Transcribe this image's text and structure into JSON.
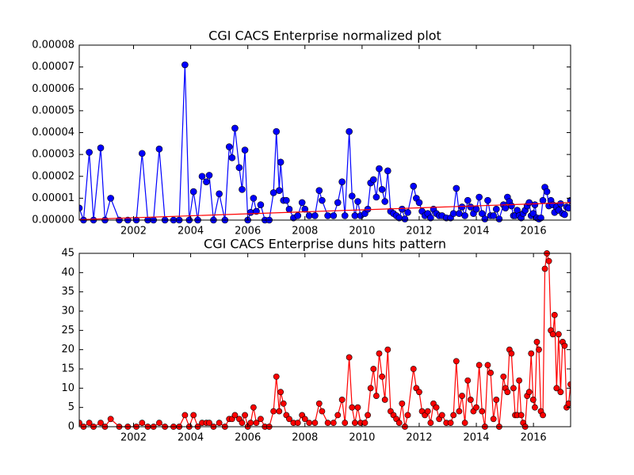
{
  "chart_data": [
    {
      "type": "line",
      "title": "CGI CACS Enterprise normalized plot",
      "xlim": [
        2000.1,
        2017.3
      ],
      "xticks": [
        2002,
        2004,
        2006,
        2008,
        2010,
        2012,
        2014,
        2016
      ],
      "ylim": [
        0,
        8e-05
      ],
      "yticks": [
        {
          "value": 0,
          "label": "0.00000"
        },
        {
          "value": 1e-05,
          "label": "0.00001"
        },
        {
          "value": 2e-05,
          "label": "0.00002"
        },
        {
          "value": 3e-05,
          "label": "0.00003"
        },
        {
          "value": 4e-05,
          "label": "0.00004"
        },
        {
          "value": 5e-05,
          "label": "0.00005"
        },
        {
          "value": 6e-05,
          "label": "0.00006"
        },
        {
          "value": 7e-05,
          "label": "0.00007"
        },
        {
          "value": 8e-05,
          "label": "0.00008"
        }
      ],
      "x": [
        2000.1,
        2000.25,
        2000.45,
        2000.6,
        2000.85,
        2001.0,
        2001.2,
        2001.5,
        2001.8,
        2002.1,
        2002.3,
        2002.5,
        2002.7,
        2002.9,
        2003.1,
        2003.4,
        2003.6,
        2003.8,
        2003.95,
        2004.1,
        2004.25,
        2004.4,
        2004.55,
        2004.65,
        2004.8,
        2005.0,
        2005.2,
        2005.35,
        2005.45,
        2005.55,
        2005.7,
        2005.8,
        2005.9,
        2006.0,
        2006.1,
        2006.2,
        2006.3,
        2006.45,
        2006.6,
        2006.75,
        2006.9,
        2007.0,
        2007.1,
        2007.15,
        2007.25,
        2007.35,
        2007.45,
        2007.6,
        2007.75,
        2007.9,
        2008.0,
        2008.15,
        2008.35,
        2008.5,
        2008.6,
        2008.8,
        2009.0,
        2009.15,
        2009.3,
        2009.4,
        2009.55,
        2009.65,
        2009.75,
        2009.85,
        2009.95,
        2010.1,
        2010.2,
        2010.3,
        2010.4,
        2010.5,
        2010.6,
        2010.7,
        2010.8,
        2010.9,
        2011.0,
        2011.1,
        2011.2,
        2011.3,
        2011.4,
        2011.5,
        2011.6,
        2011.8,
        2011.9,
        2012.0,
        2012.1,
        2012.2,
        2012.3,
        2012.4,
        2012.5,
        2012.6,
        2012.7,
        2012.8,
        2012.95,
        2013.1,
        2013.2,
        2013.3,
        2013.4,
        2013.5,
        2013.6,
        2013.7,
        2013.8,
        2013.9,
        2014.0,
        2014.1,
        2014.2,
        2014.3,
        2014.4,
        2014.5,
        2014.6,
        2014.7,
        2014.8,
        2014.95,
        2015.02,
        2015.09,
        2015.16,
        2015.23,
        2015.3,
        2015.36,
        2015.43,
        2015.5,
        2015.57,
        2015.64,
        2015.71,
        2015.78,
        2015.85,
        2015.92,
        2015.99,
        2016.05,
        2016.12,
        2016.19,
        2016.26,
        2016.33,
        2016.4,
        2016.47,
        2016.54,
        2016.61,
        2016.68,
        2016.74,
        2016.81,
        2016.88,
        2016.95,
        2017.02,
        2017.09,
        2017.16,
        2017.23,
        2017.3
      ],
      "series": [
        {
          "color": "#0000ff",
          "marker": true,
          "values": [
            5.5e-06,
            0,
            3.1e-05,
            0,
            3.3e-05,
            0,
            1e-05,
            0,
            0,
            0,
            3.05e-05,
            0,
            0,
            3.25e-05,
            0,
            0,
            0,
            7.1e-05,
            0,
            1.3e-05,
            0,
            2e-05,
            1.75e-05,
            2.05e-05,
            0,
            1.2e-05,
            0,
            3.35e-05,
            2.85e-05,
            4.2e-05,
            2.4e-05,
            1.4e-05,
            3.2e-05,
            0,
            3.5e-06,
            1e-05,
            4e-06,
            7e-06,
            0,
            0,
            1.25e-05,
            4.05e-05,
            1.35e-05,
            2.65e-05,
            9e-06,
            9e-06,
            5e-06,
            1e-06,
            2e-06,
            8e-06,
            5e-06,
            2e-06,
            2e-06,
            1.35e-05,
            9e-06,
            2e-06,
            2e-06,
            8e-06,
            1.75e-05,
            2e-06,
            4.05e-05,
            1.1e-05,
            2e-06,
            8.5e-06,
            2e-06,
            3e-06,
            5e-06,
            1.7e-05,
            1.85e-05,
            1.05e-05,
            2.35e-05,
            1.4e-05,
            8.5e-06,
            2.25e-05,
            4e-06,
            3e-06,
            2e-06,
            1e-06,
            5e-06,
            5e-07,
            3.5e-06,
            1.55e-05,
            1e-05,
            8e-06,
            4e-06,
            2e-06,
            3e-06,
            1e-06,
            5e-06,
            3e-06,
            2e-06,
            2e-06,
            1e-06,
            1e-06,
            3e-06,
            1.45e-05,
            3e-06,
            6e-06,
            2e-06,
            9e-06,
            6e-06,
            3e-06,
            5e-06,
            1.05e-05,
            3e-06,
            5e-07,
            9e-06,
            2e-06,
            2e-06,
            5e-06,
            5e-07,
            7e-06,
            5.5e-06,
            1.05e-05,
            8.5e-06,
            6.5e-06,
            2e-06,
            2e-06,
            4.5e-06,
            2e-06,
            1e-06,
            3e-06,
            4.5e-06,
            6.5e-06,
            8e-06,
            2e-06,
            3e-06,
            7e-06,
            1e-06,
            5e-07,
            1e-06,
            9e-06,
            1.5e-05,
            1.3e-05,
            6.5e-06,
            9e-06,
            7e-06,
            3.5e-06,
            6e-06,
            4.5e-06,
            7.5e-06,
            3e-06,
            2.5e-06,
            6e-06,
            5.5e-06,
            9e-06
          ]
        },
        {
          "color": "#ff0000",
          "marker": false,
          "x": [
            2000.1,
            2017.3
          ],
          "values": [
            2e-07,
            8e-06
          ]
        }
      ]
    },
    {
      "type": "line",
      "title": "CGI CACS Enterprise duns hits pattern",
      "xlim": [
        2000.1,
        2017.3
      ],
      "xticks": [
        2002,
        2004,
        2006,
        2008,
        2010,
        2012,
        2014,
        2016
      ],
      "ylim": [
        0,
        45
      ],
      "yticks": [
        0,
        5,
        10,
        15,
        20,
        25,
        30,
        35,
        40,
        45
      ],
      "x": [
        2000.1,
        2000.25,
        2000.45,
        2000.6,
        2000.85,
        2001.0,
        2001.2,
        2001.5,
        2001.8,
        2002.1,
        2002.3,
        2002.5,
        2002.7,
        2002.9,
        2003.1,
        2003.4,
        2003.6,
        2003.8,
        2003.95,
        2004.1,
        2004.25,
        2004.4,
        2004.55,
        2004.65,
        2004.8,
        2005.0,
        2005.2,
        2005.35,
        2005.45,
        2005.55,
        2005.7,
        2005.8,
        2005.9,
        2006.0,
        2006.1,
        2006.2,
        2006.3,
        2006.45,
        2006.6,
        2006.75,
        2006.9,
        2007.0,
        2007.1,
        2007.15,
        2007.25,
        2007.35,
        2007.45,
        2007.6,
        2007.75,
        2007.9,
        2008.0,
        2008.15,
        2008.35,
        2008.5,
        2008.6,
        2008.8,
        2009.0,
        2009.15,
        2009.3,
        2009.4,
        2009.55,
        2009.65,
        2009.75,
        2009.85,
        2009.95,
        2010.1,
        2010.2,
        2010.3,
        2010.4,
        2010.5,
        2010.6,
        2010.7,
        2010.8,
        2010.9,
        2011.0,
        2011.1,
        2011.2,
        2011.3,
        2011.4,
        2011.5,
        2011.6,
        2011.8,
        2011.9,
        2012.0,
        2012.1,
        2012.2,
        2012.3,
        2012.4,
        2012.5,
        2012.6,
        2012.7,
        2012.8,
        2012.95,
        2013.1,
        2013.2,
        2013.3,
        2013.4,
        2013.5,
        2013.6,
        2013.7,
        2013.8,
        2013.9,
        2014.0,
        2014.1,
        2014.2,
        2014.3,
        2014.4,
        2014.5,
        2014.6,
        2014.7,
        2014.8,
        2014.95,
        2015.02,
        2015.09,
        2015.16,
        2015.23,
        2015.3,
        2015.36,
        2015.43,
        2015.5,
        2015.57,
        2015.64,
        2015.71,
        2015.78,
        2015.85,
        2015.92,
        2015.99,
        2016.05,
        2016.12,
        2016.19,
        2016.26,
        2016.33,
        2016.4,
        2016.47,
        2016.54,
        2016.61,
        2016.68,
        2016.74,
        2016.81,
        2016.88,
        2016.95,
        2017.02,
        2017.09,
        2017.16,
        2017.23,
        2017.3
      ],
      "series": [
        {
          "color": "#ff0000",
          "marker": true,
          "values": [
            1,
            0,
            1,
            0,
            1,
            0,
            2,
            0,
            0,
            0,
            1,
            0,
            0,
            1,
            0,
            0,
            0,
            3,
            0,
            3,
            0,
            1,
            1,
            1,
            0,
            1,
            0,
            2,
            2,
            3,
            2,
            1,
            3,
            0,
            1,
            5,
            1,
            2,
            0,
            0,
            4,
            13,
            4,
            9,
            6,
            3,
            2,
            1,
            1,
            3,
            2,
            1,
            1,
            6,
            4,
            1,
            1,
            3,
            7,
            1,
            18,
            5,
            1,
            5,
            1,
            1,
            3,
            10,
            15,
            8,
            19,
            13,
            7,
            20,
            4,
            3,
            2,
            1,
            6,
            0,
            3,
            15,
            10,
            9,
            4,
            3,
            4,
            1,
            6,
            5,
            2,
            3,
            1,
            1,
            3,
            17,
            4,
            8,
            1,
            12,
            7,
            4,
            5,
            16,
            4,
            0,
            16,
            14,
            2,
            7,
            0,
            13,
            10,
            9,
            20,
            19,
            10,
            3,
            3,
            12,
            3,
            1,
            0,
            8,
            9,
            19,
            7,
            5,
            22,
            20,
            4,
            3,
            41,
            45,
            43,
            25,
            24,
            29,
            10,
            24,
            9,
            22,
            21,
            5,
            6,
            11
          ]
        }
      ]
    }
  ]
}
